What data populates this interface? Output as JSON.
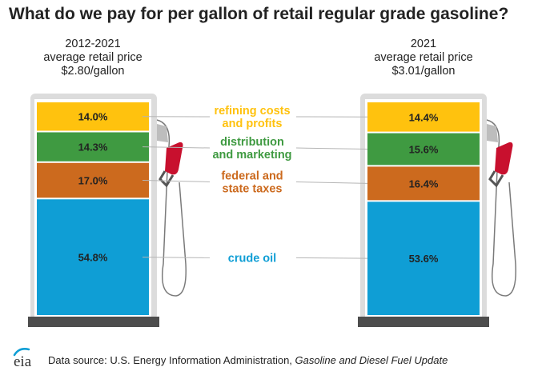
{
  "title": "What do we pay for per gallon of retail regular grade gasoline?",
  "footer": {
    "source_prefix": "Data source: U.S. Energy Information Administration, ",
    "source_publication": "Gasoline and Diesel Fuel Update",
    "logo_text": "eia"
  },
  "colors": {
    "refining": "#ffc20e",
    "distribution": "#3f9a41",
    "taxes": "#cc6a1e",
    "crude": "#0f9ed5",
    "pump_body": "#dcdcdc",
    "pump_base": "#4d4d4d",
    "nozzle": "#c8102e"
  },
  "chart_data": {
    "type": "stacked-bar",
    "title": "What do we pay for per gallon of retail regular grade gasoline?",
    "unit": "percent of retail price",
    "categories": [
      "crude oil",
      "federal and state taxes",
      "distribution and marketing",
      "refining costs and profits"
    ],
    "bars": [
      {
        "header": [
          "2012-2021",
          "average retail price",
          "$2.80/gallon"
        ],
        "values": [
          54.8,
          17.0,
          14.3,
          14.0
        ],
        "labels": [
          "54.8%",
          "17.0%",
          "14.3%",
          "14.0%"
        ]
      },
      {
        "header": [
          "2021",
          "average retail price",
          "$3.01/gallon"
        ],
        "values": [
          53.6,
          16.4,
          15.6,
          14.4
        ],
        "labels": [
          "53.6%",
          "16.4%",
          "15.6%",
          "14.4%"
        ]
      }
    ],
    "legend": [
      {
        "lines": [
          "refining costs",
          "and profits"
        ],
        "color_key": "refining"
      },
      {
        "lines": [
          "distribution",
          "and marketing"
        ],
        "color_key": "distribution"
      },
      {
        "lines": [
          "federal and",
          "state taxes"
        ],
        "color_key": "taxes"
      },
      {
        "lines": [
          "crude oil"
        ],
        "color_key": "crude"
      }
    ]
  }
}
